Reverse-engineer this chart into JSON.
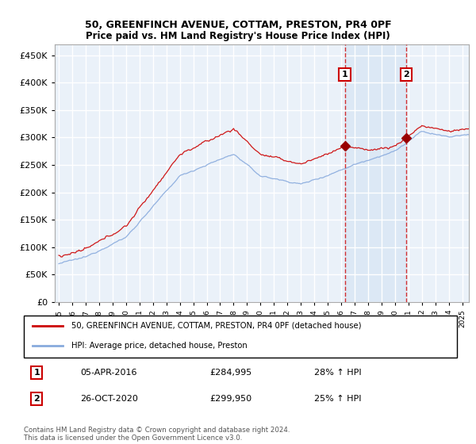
{
  "title": "50, GREENFINCH AVENUE, COTTAM, PRESTON, PR4 0PF",
  "subtitle": "Price paid vs. HM Land Registry's House Price Index (HPI)",
  "ylim": [
    0,
    470000
  ],
  "yticks": [
    0,
    50000,
    100000,
    150000,
    200000,
    250000,
    300000,
    350000,
    400000,
    450000
  ],
  "bg_color": "#ffffff",
  "plot_bg_color": "#dce8f5",
  "plot_bg_color2": "#eaf1f9",
  "grid_color": "#ffffff",
  "red_line_color": "#cc0000",
  "blue_line_color": "#88aadd",
  "sale1_year": 2016.27,
  "sale1_price": 284995,
  "sale1_date": "05-APR-2016",
  "sale1_pct": "28% ↑ HPI",
  "sale2_year": 2020.83,
  "sale2_price": 299950,
  "sale2_date": "26-OCT-2020",
  "sale2_pct": "25% ↑ HPI",
  "legend_red": "50, GREENFINCH AVENUE, COTTAM, PRESTON, PR4 0PF (detached house)",
  "legend_blue": "HPI: Average price, detached house, Preston",
  "footnote": "Contains HM Land Registry data © Crown copyright and database right 2024.\nThis data is licensed under the Open Government Licence v3.0."
}
